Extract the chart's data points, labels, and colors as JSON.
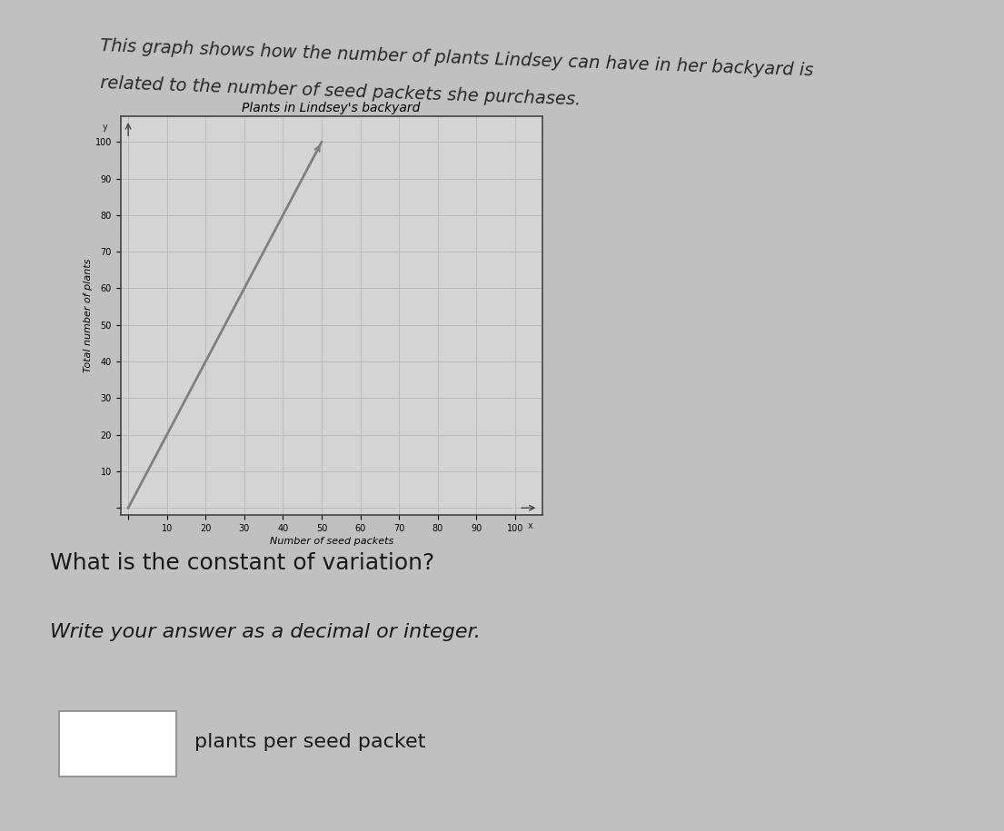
{
  "description_line1": "This graph shows how the number of plants Lindsey can have in her backyard is",
  "description_line2": "related to the number of seed packets she purchases.",
  "chart_title": "Plants in Lindsey's backyard",
  "xlabel": "Number of seed packets",
  "ylabel": "Total number of plants",
  "x_ticks": [
    0,
    10,
    20,
    30,
    40,
    50,
    60,
    70,
    80,
    90,
    100
  ],
  "y_ticks": [
    0,
    10,
    20,
    30,
    40,
    50,
    60,
    70,
    80,
    90,
    100
  ],
  "xlim": [
    -2,
    107
  ],
  "ylim": [
    -2,
    107
  ],
  "line_x": [
    0,
    50
  ],
  "line_y": [
    0,
    100
  ],
  "line_color": "#808080",
  "line_width": 2.0,
  "grid_color": "#bbbbbb",
  "bg_color": "#c8c8c8",
  "chart_bg": "#d4d4d4",
  "question_text": "What is the constant of variation?",
  "instruction_text": "Write your answer as a decimal or integer.",
  "answer_suffix": "plants per seed packet",
  "description_fontsize": 14,
  "question_fontsize": 18,
  "instruction_fontsize": 16,
  "chart_title_fontsize": 10,
  "axis_label_fontsize": 8,
  "tick_fontsize": 7,
  "fig_bg": "#c0c0c0"
}
